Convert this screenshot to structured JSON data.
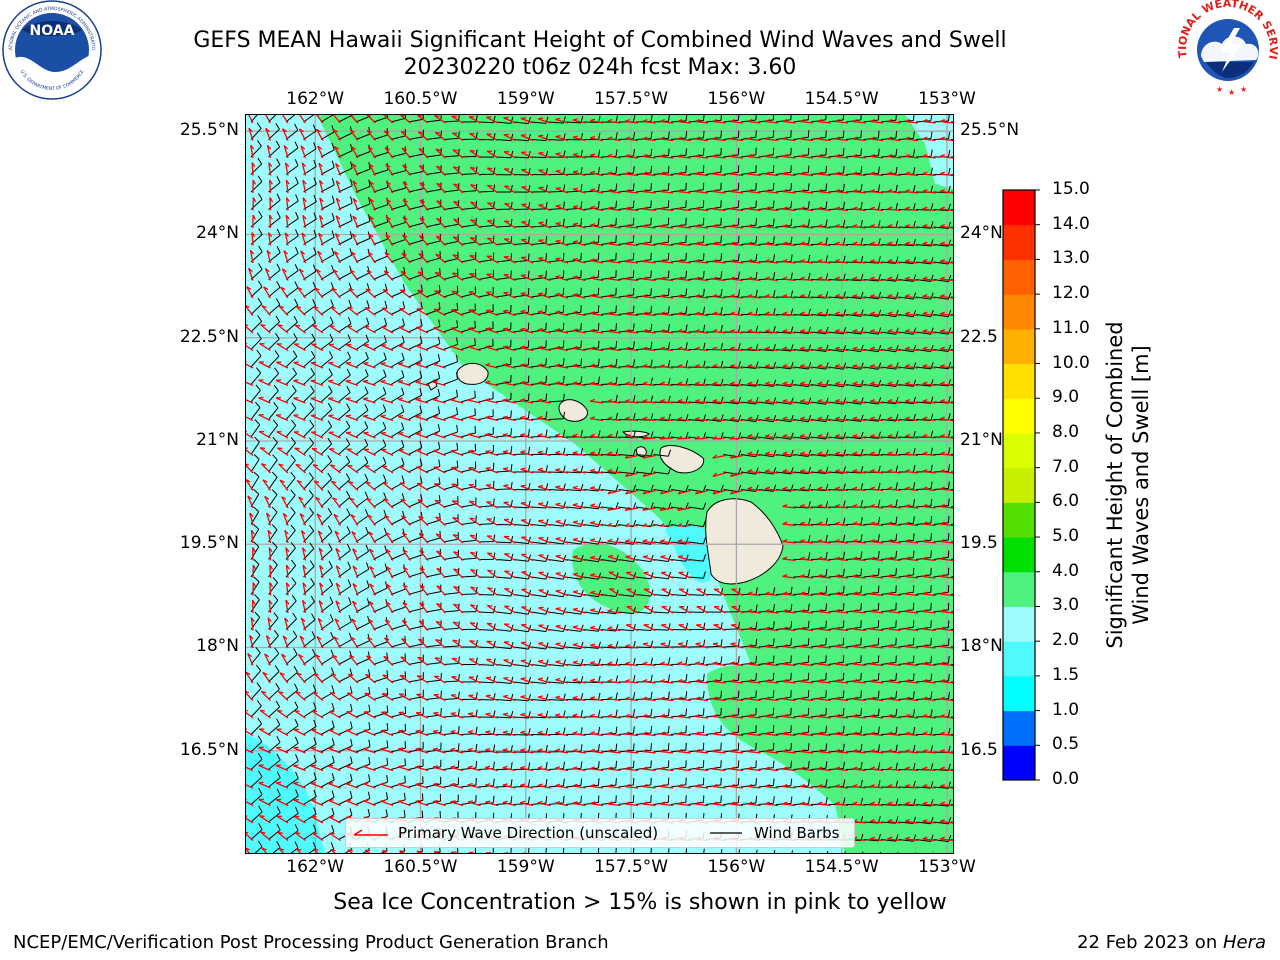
{
  "header": {
    "title_line1": "GEFS MEAN Hawaii Significant Height of Combined Wind Waves and Swell",
    "title_line2": "20230220 t06z 024h fcst   Max: 3.60"
  },
  "logos": {
    "left": "NOAA",
    "left_ring": "NATIONAL OCEANIC AND ATMOSPHERIC ADMINISTRATION",
    "left_bottom": "U.S. DEPARTMENT OF COMMERCE",
    "right_ring": "NATIONAL WEATHER SERVICE"
  },
  "map": {
    "lon_labels": [
      "162°W",
      "160.5°W",
      "159°W",
      "157.5°W",
      "156°W",
      "154.5°W",
      "153°W"
    ],
    "lon_values": [
      -162,
      -160.5,
      -159,
      -157.5,
      -156,
      -154.5,
      -153
    ],
    "lat_labels": [
      "25.5°N",
      "24°N",
      "22.5°N",
      "21°N",
      "19.5°N",
      "18°N",
      "16.5°N"
    ],
    "right_lat_labels": [
      "25.5°N",
      "24°N",
      "22.5",
      "21°N",
      "19.5",
      "18°N",
      "16.5"
    ],
    "lat_values": [
      25.5,
      24,
      22.5,
      21,
      19.5,
      18,
      16.5
    ],
    "lon_range": [
      -163,
      -152.9
    ],
    "lat_range": [
      15.0,
      25.75
    ],
    "fill_colors": {
      "ocean_low": "#9ffcfc",
      "ocean_mid": "#4ff27f",
      "ocean_cyan": "#4ffafc",
      "land": "#efeadb"
    },
    "barb_color": "#000000",
    "wave_arrow_color": "#ff0000"
  },
  "legend": {
    "wave_label": "Primary Wave Direction (unscaled)",
    "barb_label": "Wind Barbs"
  },
  "colorbar": {
    "label_line1": "Significant Height of Combined",
    "label_line2": "Wind Waves and Swell [m]",
    "ticks": [
      "0.0",
      "0.5",
      "1.0",
      "1.5",
      "2.0",
      "3.0",
      "4.0",
      "5.0",
      "6.0",
      "7.0",
      "8.0",
      "9.0",
      "10.0",
      "11.0",
      "12.0",
      "13.0",
      "14.0",
      "15.0"
    ],
    "colors": [
      "#0000ff",
      "#0070ff",
      "#00ffff",
      "#4ffafc",
      "#9ffcfc",
      "#4ff27f",
      "#00e000",
      "#53e000",
      "#c6f000",
      "#d9ff00",
      "#ffff00",
      "#ffe000",
      "#ffb000",
      "#ff8800",
      "#ff6000",
      "#ff3000",
      "#ff0000"
    ]
  },
  "notes": {
    "sea_ice": "Sea Ice Concentration > 15% is shown in pink to yellow"
  },
  "footer": {
    "left": "NCEP/EMC/Verification Post Processing Product Generation Branch",
    "date": "22 Feb 2023 on ",
    "host": "Hera"
  }
}
